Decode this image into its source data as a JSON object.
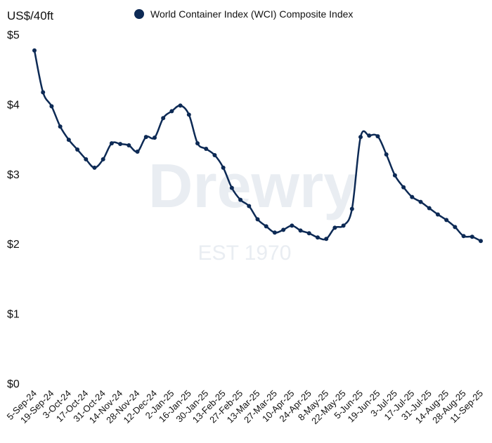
{
  "chart_data": {
    "type": "line",
    "y_label": "US$/40ft",
    "watermark": [
      "Drewry",
      "EST 1970"
    ],
    "categories": [
      "5-Sep-24",
      null,
      "19-Sep-24",
      null,
      "3-Oct-24",
      null,
      "17-Oct-24",
      null,
      "31-Oct-24",
      null,
      "14-Nov-24",
      null,
      "28-Nov-24",
      null,
      "12-Dec-24",
      null,
      "2-Jan-25",
      null,
      "16-Jan-25",
      null,
      "30-Jan-25",
      null,
      "13-Feb-25",
      null,
      "27-Feb-25",
      null,
      "13-Mar-25",
      null,
      "27-Mar-25",
      null,
      "10-Apr-25",
      null,
      "24-Apr-25",
      null,
      "8-May-25",
      null,
      "22-May-25",
      null,
      "5-Jun-25",
      null,
      "19-Jun-25",
      null,
      "3-Jul-25",
      null,
      "17-Jul-25",
      null,
      "31-Jul-25",
      null,
      "14-Aug-25",
      null,
      "28-Aug-25",
      null,
      "11-Sep-25"
    ],
    "series": [
      {
        "name": "World Container Index (WCI) Composite Index",
        "color": "#0d2a55",
        "values": [
          4.78,
          4.18,
          3.98,
          3.69,
          3.5,
          3.36,
          3.22,
          3.1,
          3.22,
          3.45,
          3.44,
          3.42,
          3.33,
          3.54,
          3.53,
          3.81,
          3.91,
          3.99,
          3.86,
          3.45,
          3.37,
          3.28,
          3.1,
          2.81,
          2.64,
          2.55,
          2.36,
          2.26,
          2.17,
          2.21,
          2.27,
          2.2,
          2.16,
          2.1,
          2.08,
          2.24,
          2.27,
          2.51,
          3.54,
          3.56,
          3.55,
          3.29,
          2.99,
          2.82,
          2.68,
          2.61,
          2.52,
          2.43,
          2.35,
          2.25,
          2.12,
          2.11,
          2.05
        ]
      }
    ],
    "ylim": [
      0,
      5
    ],
    "yticks": [
      {
        "value": 0,
        "label": "$0"
      },
      {
        "value": 1,
        "label": "$1"
      },
      {
        "value": 2,
        "label": "$2"
      },
      {
        "value": 3,
        "label": "$3"
      },
      {
        "value": 4,
        "label": "$4"
      },
      {
        "value": 5,
        "label": "$5"
      }
    ],
    "grid": false
  }
}
